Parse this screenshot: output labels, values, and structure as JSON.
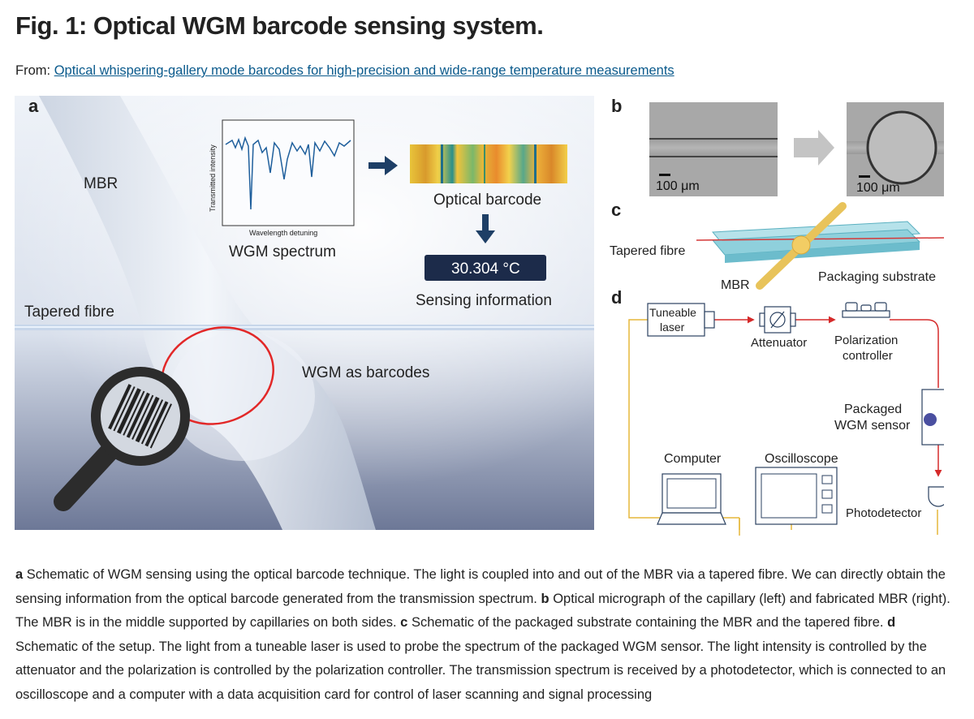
{
  "title": "Fig. 1: Optical WGM barcode sensing system.",
  "from_label": "From:",
  "source_link": "Optical whispering-gallery mode barcodes for high-precision and wide-range temperature measurements",
  "panels": {
    "a": {
      "letter": "a",
      "mbr": "MBR",
      "tapered_fibre": "Tapered fibre",
      "wgm_barcodes": "WGM as barcodes",
      "ylabel": "Transmitted intensity",
      "xlabel": "Wavelength detuning",
      "spectrum": "WGM spectrum",
      "barcode": "Optical barcode",
      "temperature": "30.304 °C",
      "sensing": "Sensing information"
    },
    "b": {
      "letter": "b",
      "scale_left": "100 μm",
      "scale_right": "100 μm"
    },
    "c": {
      "letter": "c",
      "tapered_fibre": "Tapered fibre",
      "mbr": "MBR",
      "substrate": "Packaging substrate"
    },
    "d": {
      "letter": "d",
      "laser_line1": "Tuneable",
      "laser_line2": "laser",
      "attenuator": "Attenuator",
      "pol_line1": "Polarization",
      "pol_line2": "controller",
      "sensor_line1": "Packaged",
      "sensor_line2": "WGM sensor",
      "computer": "Computer",
      "oscilloscope": "Oscilloscope",
      "photodetector": "Photodetector"
    }
  },
  "caption": {
    "a_letter": "a",
    "a_text": "Schematic of WGM sensing using the optical barcode technique. The light is coupled into and out of the MBR via a tapered fibre. We can directly obtain the sensing information from the optical barcode generated from the transmission spectrum.",
    "b_letter": "b",
    "b_text": "Optical micrograph of the capillary (left) and fabricated MBR (right). The MBR is in the middle supported by capillaries on both sides.",
    "c_letter": "c",
    "c_text": "Schematic of the packaged substrate containing the MBR and the tapered fibre.",
    "d_letter": "d",
    "d_text": "Schematic of the setup. The light from a tuneable laser is used to probe the spectrum of the packaged WGM sensor. The light intensity is controlled by the attenuator and the polarization is controlled by the polarization controller. The transmission spectrum is received by a photodetector, which is connected to an oscilloscope and a computer with a data acquisition card for control of laser scanning and signal processing"
  }
}
